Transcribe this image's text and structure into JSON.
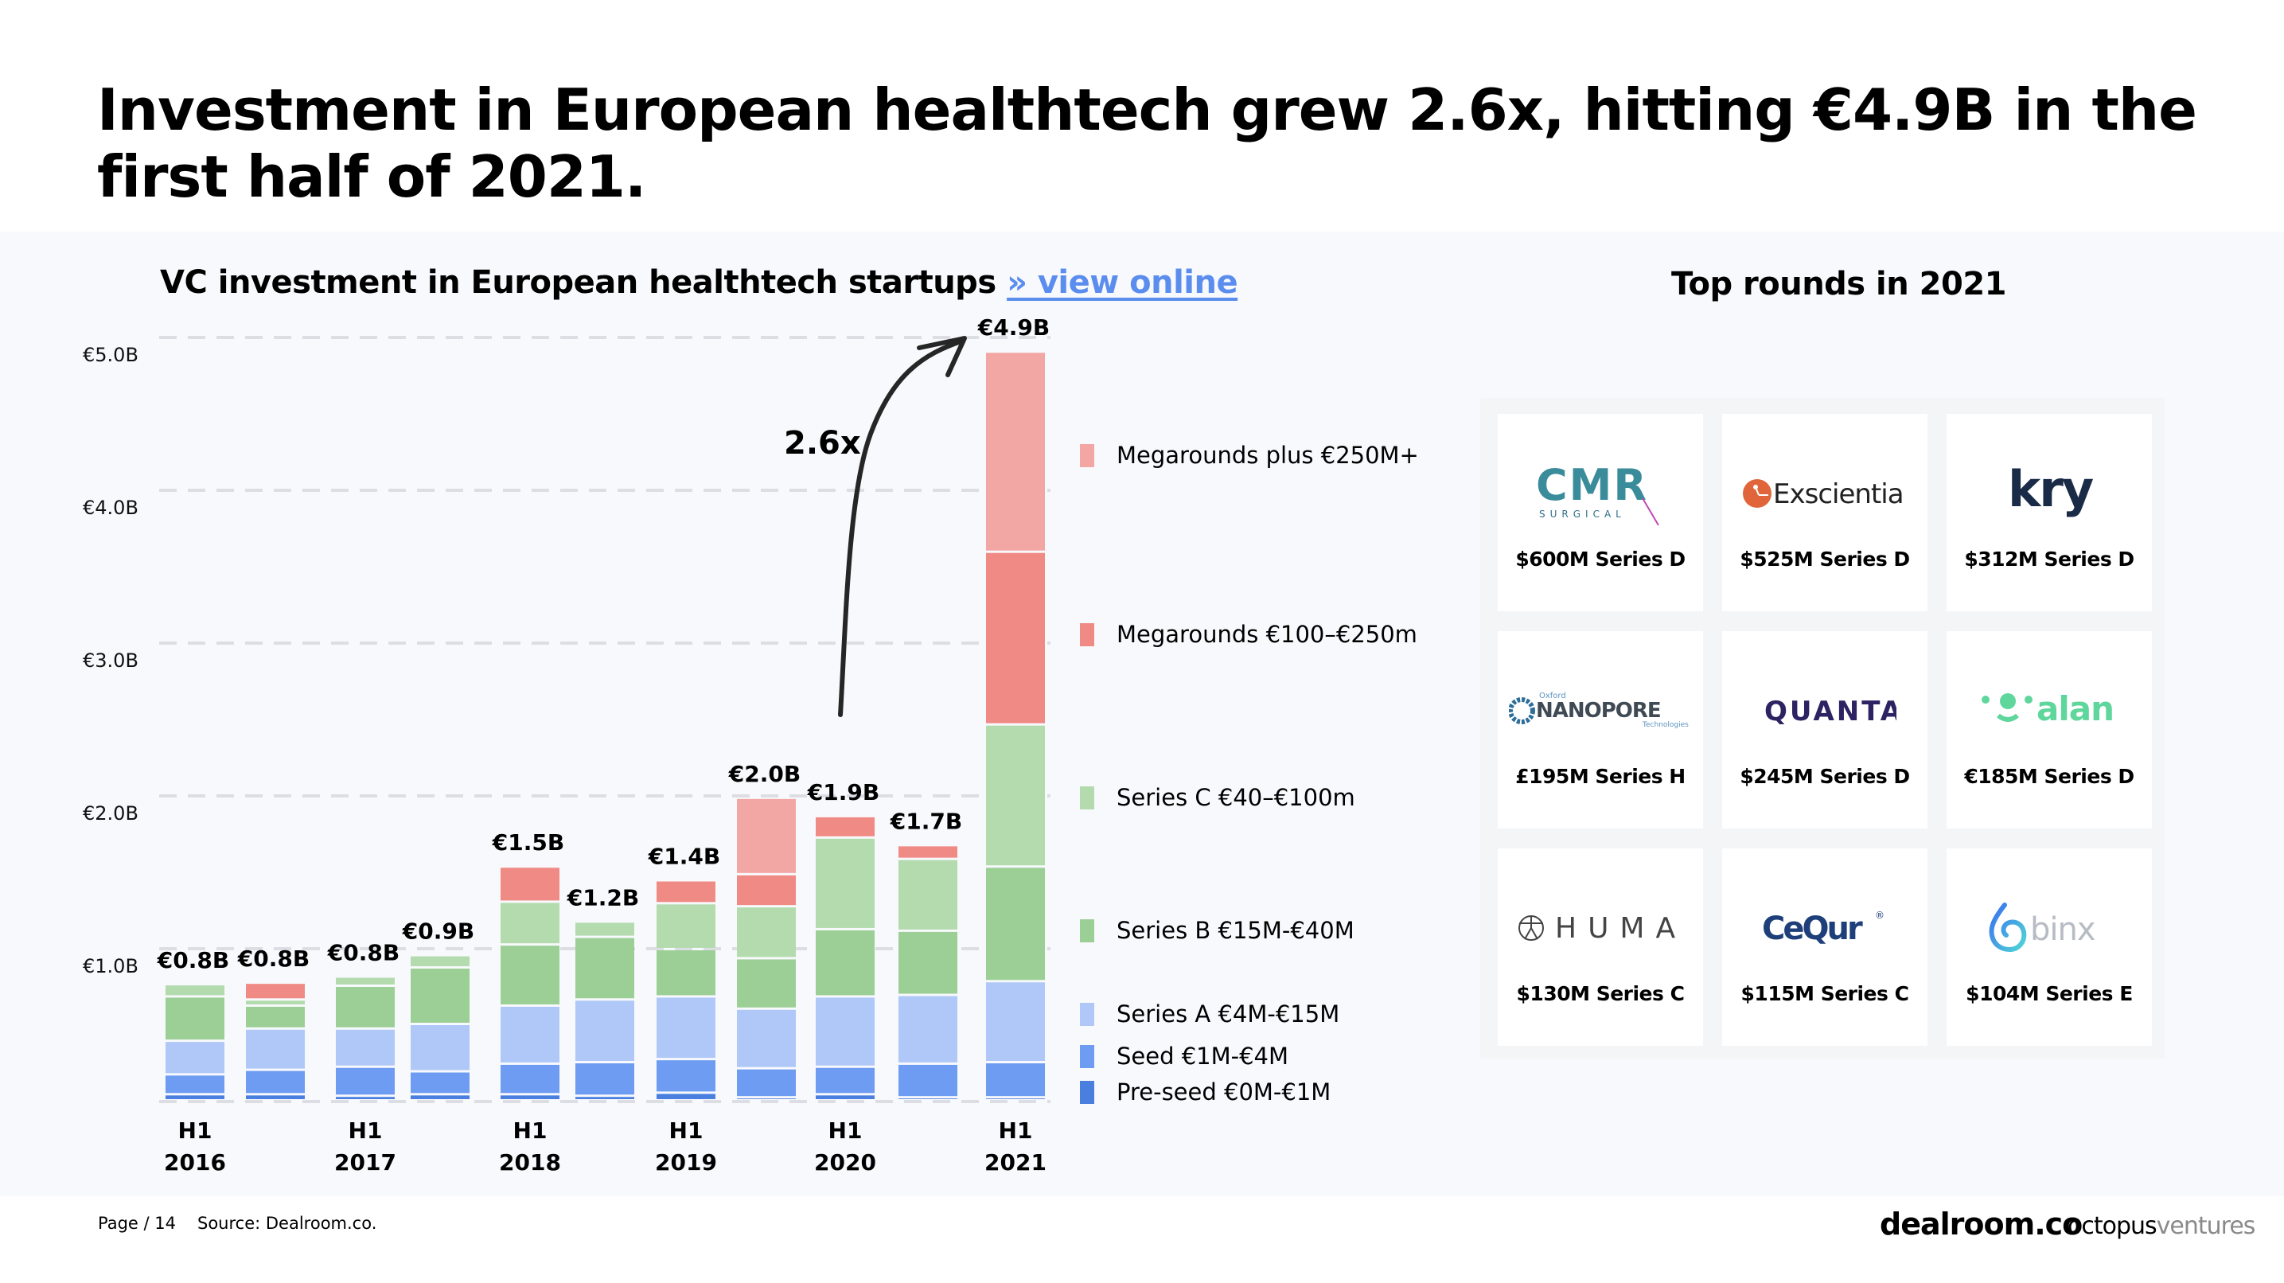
{
  "header": {
    "title": "Investment in European healthtech grew 2.6x, hitting €4.9B in the first half of 2021."
  },
  "chart_section": {
    "title": "VC investment in European healthtech startups",
    "link_label": "» view online"
  },
  "chart_data": {
    "type": "bar",
    "stacked": true,
    "title": "VC investment in European healthtech startups",
    "xlabel": "",
    "ylabel": "",
    "ylim": [
      0,
      5.0
    ],
    "y_unit": "€B",
    "y_ticks": [
      "€1.0B",
      "€2.0B",
      "€3.0B",
      "€4.0B",
      "€5.0B"
    ],
    "grid": true,
    "legend_position": "right",
    "categories": [
      "H1 2016",
      "H2 2016",
      "H1 2017",
      "H2 2017",
      "H1 2018",
      "H2 2018",
      "H1 2019",
      "H2 2019",
      "H1 2020",
      "H2 2020",
      "H1 2021"
    ],
    "x_tick_labels": [
      {
        "index": 0,
        "line1": "H1",
        "line2": "2016"
      },
      {
        "index": 2,
        "line1": "H1",
        "line2": "2017"
      },
      {
        "index": 4,
        "line1": "H1",
        "line2": "2018"
      },
      {
        "index": 6,
        "line1": "H1",
        "line2": "2019"
      },
      {
        "index": 8,
        "line1": "H1",
        "line2": "2020"
      },
      {
        "index": 10,
        "line1": "H1",
        "line2": "2021"
      }
    ],
    "totals_labels": [
      "€0.8B",
      "€0.8B",
      "€0.8B",
      "€0.9B",
      "€1.5B",
      "€1.2B",
      "€1.4B",
      "€2.0B",
      "€1.9B",
      "€1.7B",
      "€4.9B"
    ],
    "series": [
      {
        "name": "Pre-seed €0M-€1M",
        "color": "#4a7fe0",
        "values": [
          0.04,
          0.04,
          0.03,
          0.04,
          0.04,
          0.03,
          0.05,
          0.02,
          0.04,
          0.02,
          0.02
        ]
      },
      {
        "name": "Seed €1M-€4M",
        "color": "#6d9cf2",
        "values": [
          0.13,
          0.16,
          0.19,
          0.15,
          0.2,
          0.22,
          0.22,
          0.19,
          0.18,
          0.22,
          0.23
        ]
      },
      {
        "name": "Series A €4M-€15M",
        "color": "#b0c8f8",
        "values": [
          0.22,
          0.27,
          0.25,
          0.31,
          0.38,
          0.41,
          0.41,
          0.39,
          0.46,
          0.45,
          0.53
        ]
      },
      {
        "name": "Series B €15M-€40M",
        "color": "#9ccf96",
        "values": [
          0.29,
          0.15,
          0.28,
          0.37,
          0.4,
          0.41,
          0.31,
          0.33,
          0.44,
          0.42,
          0.75
        ]
      },
      {
        "name": "Series C €40–€100m",
        "color": "#b3dbae",
        "values": [
          0.08,
          0.04,
          0.06,
          0.08,
          0.28,
          0.1,
          0.3,
          0.34,
          0.6,
          0.47,
          0.93
        ]
      },
      {
        "name": "Megarounds €100–€250m",
        "color": "#f08a85",
        "values": [
          0,
          0.11,
          0,
          0,
          0.23,
          0,
          0.15,
          0.21,
          0.14,
          0.09,
          1.13
        ]
      },
      {
        "name": "Megarounds plus €250M+",
        "color": "#f3a7a5",
        "values": [
          0,
          0,
          0,
          0,
          0,
          0,
          0,
          0.5,
          0,
          0,
          1.31
        ]
      }
    ],
    "legend_order": [
      6,
      5,
      4,
      3,
      2,
      1,
      0
    ],
    "annotation": {
      "text": "2.6x",
      "arrow_from": "H1 2020",
      "arrow_to": "H1 2021"
    }
  },
  "top_rounds": {
    "title": "Top rounds in 2021",
    "cards": [
      {
        "company": "CMR Surgical",
        "logo": "cmr-logo",
        "amount": "$600M Series D"
      },
      {
        "company": "Exscientia",
        "logo": "exscientia-logo",
        "amount": "$525M Series D"
      },
      {
        "company": "kry",
        "logo": "kry-logo",
        "amount": "$312M Series D"
      },
      {
        "company": "Oxford Nanopore Technologies",
        "logo": "nanopore-logo",
        "amount": "£195M Series H"
      },
      {
        "company": "QUANTA",
        "logo": "quanta-logo",
        "amount": "$245M Series D"
      },
      {
        "company": "alan",
        "logo": "alan-logo",
        "amount": "€185M Series D"
      },
      {
        "company": "HUMA",
        "logo": "huma-logo",
        "amount": "$130M Series C"
      },
      {
        "company": "CeQur",
        "logo": "cequr-logo",
        "amount": "$115M Series C"
      },
      {
        "company": "binx",
        "logo": "binx-logo",
        "amount": "$104M Series E"
      }
    ],
    "logo_text": {
      "cmr_main": "CMR",
      "cmr_sub": "SURGICAL",
      "exscientia": "Exscientia",
      "kry": "kry",
      "nanopore_top": "Oxford",
      "nanopore_main": "NANOPORE",
      "nanopore_sub": "Technologies",
      "quanta": "QUANTA",
      "alan": "alan",
      "huma": "HUMA",
      "cequr": "CeQur",
      "cequr_reg": "®",
      "binx": "binx"
    }
  },
  "footer": {
    "page": "Page / 14",
    "source": "Source: Dealroom.co.",
    "brand_dealroom": "dealroom.co",
    "brand_octopus_main": "octopus",
    "brand_octopus_sub": "ventures"
  }
}
